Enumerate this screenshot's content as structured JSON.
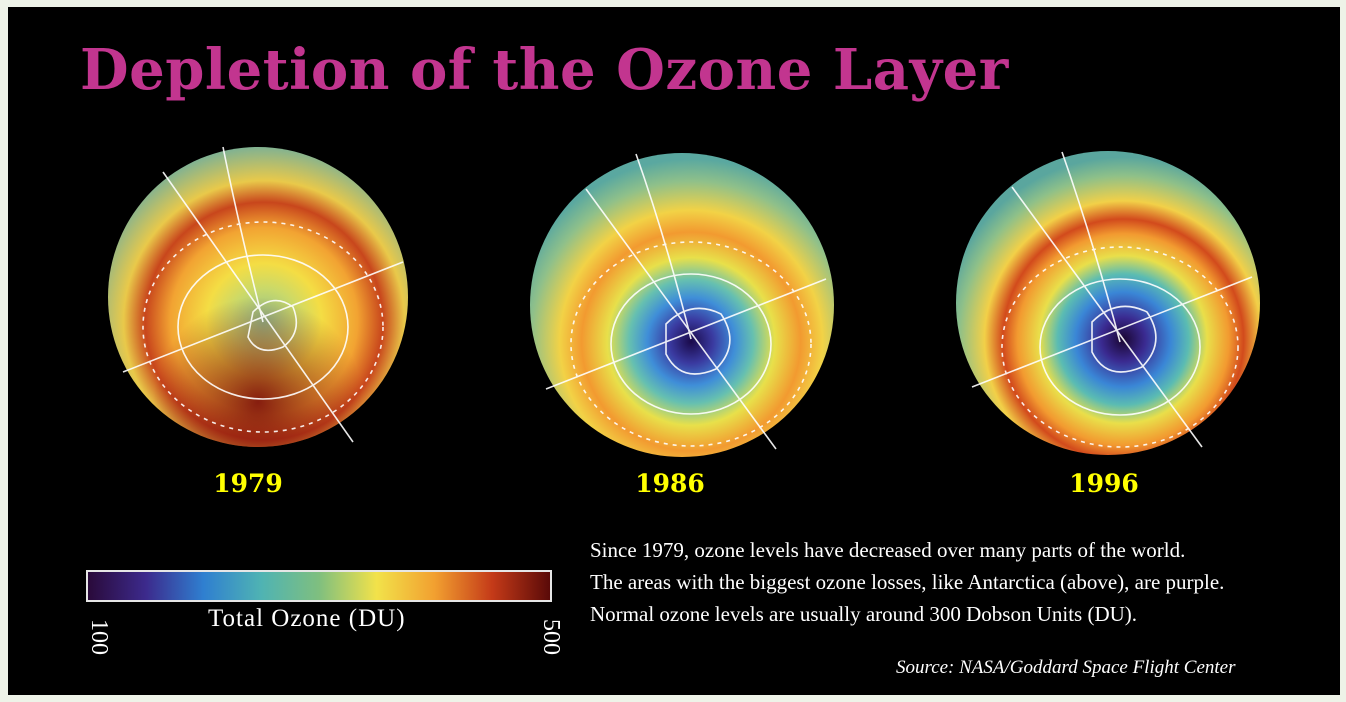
{
  "title": "Depletion of the Ozone Layer",
  "colors": {
    "background": "#000000",
    "title": "#c2358f",
    "year_labels": "#ffff00",
    "text": "#ffffff"
  },
  "globes": [
    {
      "year": "1979",
      "hole_level": 0.0
    },
    {
      "year": "1986",
      "hole_level": 0.65
    },
    {
      "year": "1996",
      "hole_level": 1.0
    }
  ],
  "scale": {
    "label": "Total Ozone (DU)",
    "min_label": "100",
    "max_label": "500",
    "gradient": [
      "#2a0a3a",
      "#3c2a8c",
      "#2f7fd0",
      "#4fb3b3",
      "#7fbf7f",
      "#f2e24a",
      "#f2a030",
      "#c43a18",
      "#5a0a08"
    ]
  },
  "caption": [
    "Since 1979, ozone levels have decreased over many parts of the world.",
    "The areas with the biggest ozone losses, like Antarctica (above), are purple.",
    "Normal ozone levels are usually around 300 Dobson Units (DU)."
  ],
  "source": "Source: NASA/Goddard Space Flight Center"
}
